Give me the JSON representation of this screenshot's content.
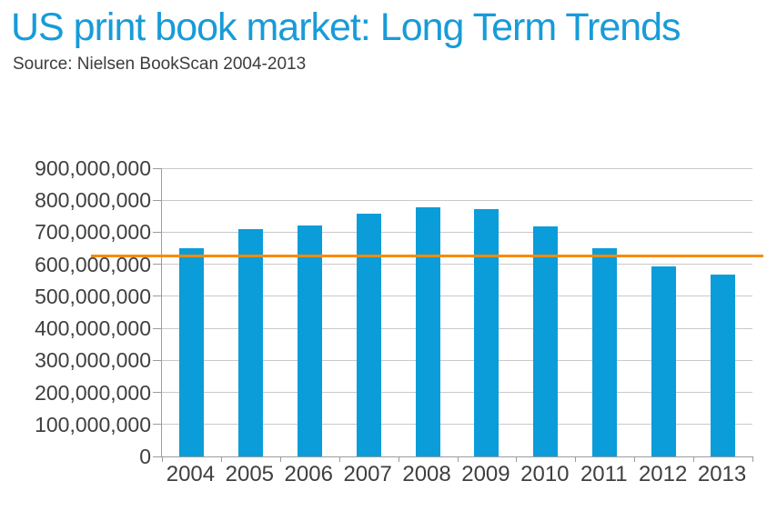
{
  "header": {
    "title": "US print book market: Long Term Trends",
    "subtitle": "Source: Nielsen BookScan 2004-2013"
  },
  "chart_data": {
    "type": "bar",
    "title": "US print book market: Long Term Trends",
    "subtitle": "Source: Nielsen BookScan 2004-2013",
    "categories": [
      "2004",
      "2005",
      "2006",
      "2007",
      "2008",
      "2009",
      "2010",
      "2011",
      "2012",
      "2013"
    ],
    "values": [
      650000000,
      710000000,
      721000000,
      758000000,
      778000000,
      771000000,
      718000000,
      651000000,
      594000000,
      567000000
    ],
    "xlabel": "",
    "ylabel": "",
    "ylim": [
      0,
      900000000
    ],
    "ytick_step": 100000000,
    "ytick_labels": [
      "0",
      "100,000,000",
      "200,000,000",
      "300,000,000",
      "400,000,000",
      "500,000,000",
      "600,000,000",
      "700,000,000",
      "800,000,000",
      "900,000,000"
    ],
    "grid": true,
    "legend": false,
    "reference_line": {
      "value": 625000000,
      "color": "#f98a00"
    },
    "colors": {
      "title": "#189bd8",
      "subtitle": "#3c3c3c",
      "bar": "#0a9dd9",
      "gridline": "#c9c9c9",
      "axis": "#9b9b9b",
      "tick_text": "#3f3f3f",
      "background": "#ffffff"
    }
  }
}
